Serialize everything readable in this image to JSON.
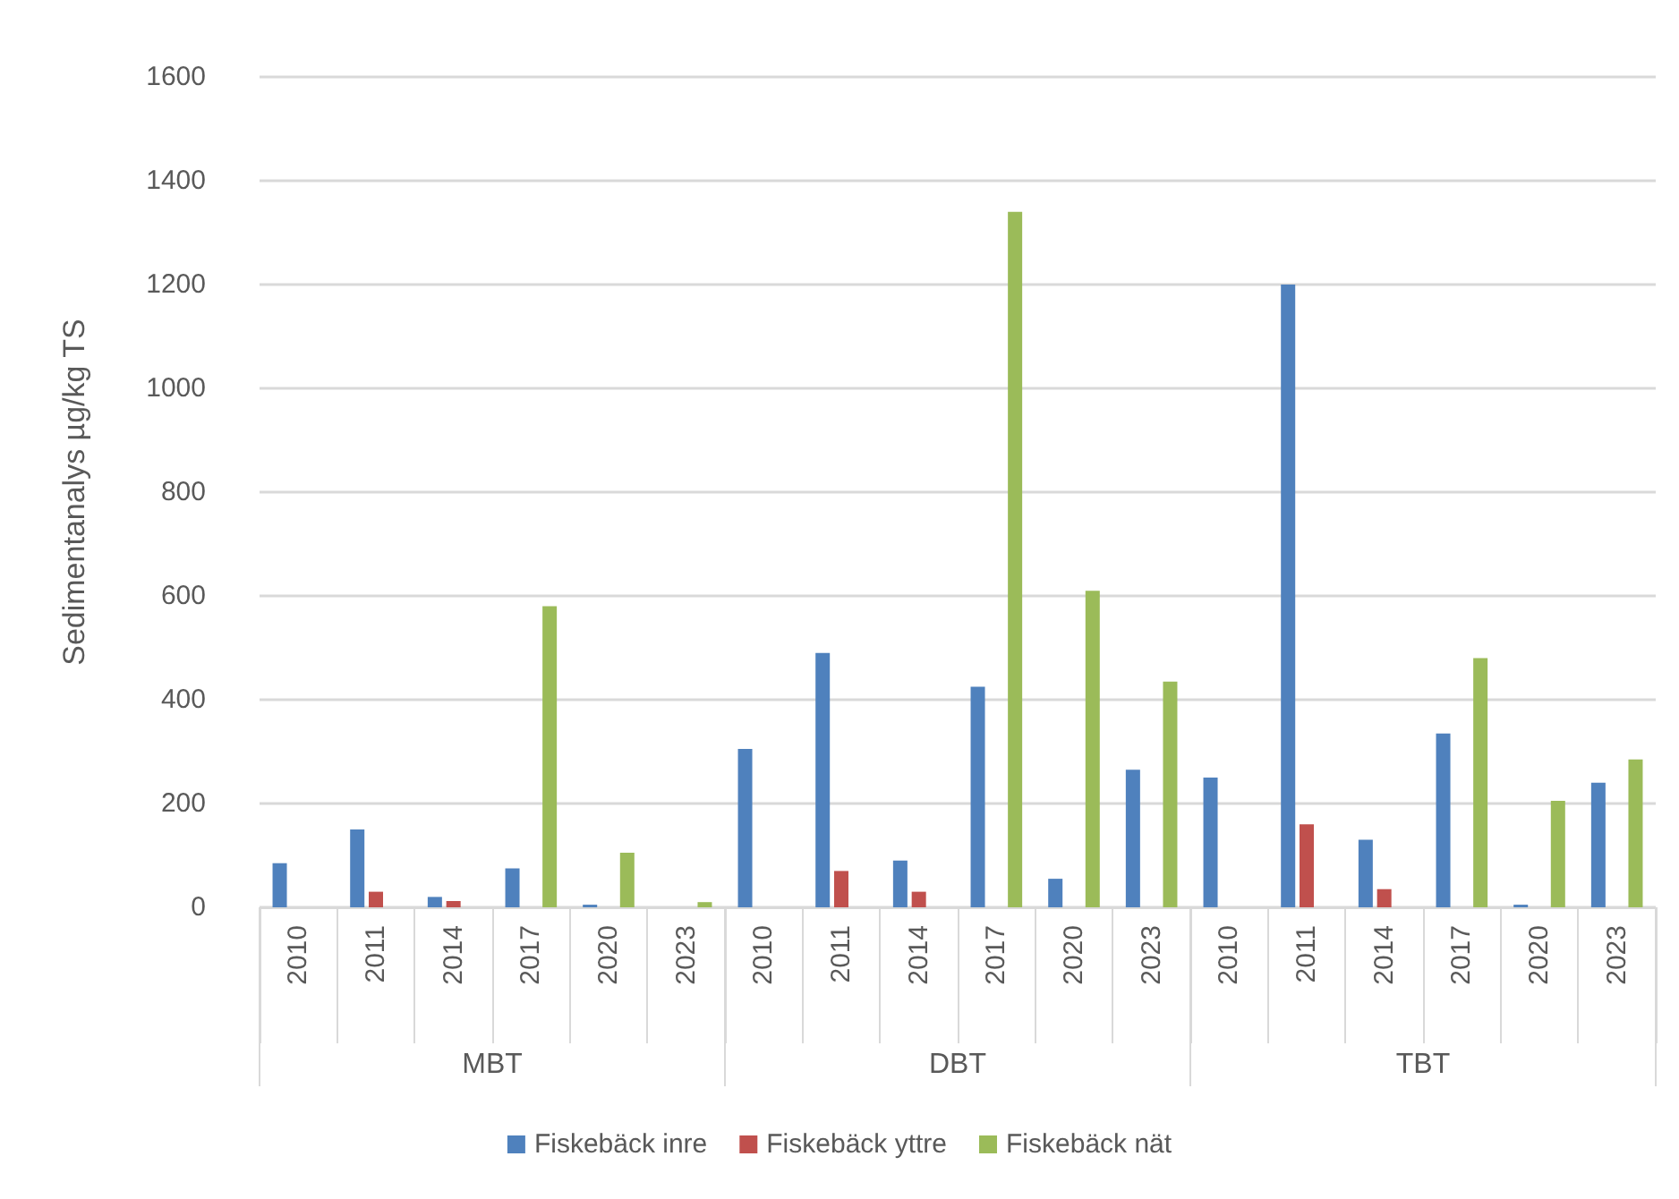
{
  "chart_data": {
    "type": "bar",
    "ylabel": "Sedimentanalys µg/kg TS",
    "categories": [
      "2010",
      "2011",
      "2014",
      "2017",
      "2020",
      "2023",
      "2010",
      "2011",
      "2014",
      "2017",
      "2020",
      "2023",
      "2010",
      "2011",
      "2014",
      "2017",
      "2020",
      "2023"
    ],
    "annotations": [
      "MBT",
      "DBT",
      "TBT"
    ],
    "series": [
      {
        "name": "Fiskebäck inre",
        "color": "#4f81bd",
        "values": [
          85,
          150,
          20,
          75,
          5,
          null,
          305,
          490,
          90,
          425,
          55,
          265,
          250,
          1200,
          130,
          335,
          5,
          240
        ]
      },
      {
        "name": "Fiskebäck yttre",
        "color": "#c0504d",
        "values": [
          null,
          30,
          12,
          null,
          null,
          null,
          null,
          70,
          30,
          null,
          null,
          null,
          null,
          160,
          35,
          null,
          null,
          null
        ]
      },
      {
        "name": "Fiskebäck nät",
        "color": "#9bbb59",
        "values": [
          null,
          null,
          null,
          580,
          105,
          10,
          null,
          null,
          null,
          1340,
          610,
          435,
          null,
          null,
          null,
          480,
          205,
          285
        ]
      }
    ],
    "ylim": [
      0,
      1600
    ],
    "yticks": [
      0,
      200,
      400,
      600,
      800,
      1000,
      1200,
      1400,
      1600
    ],
    "grid": "y",
    "legend": "bottom"
  }
}
